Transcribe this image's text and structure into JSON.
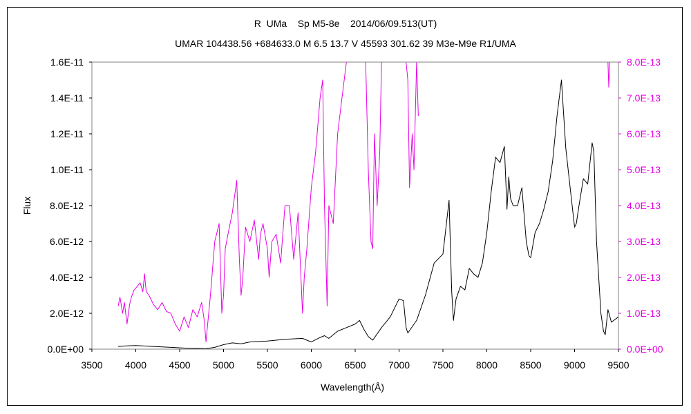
{
  "chart_data": {
    "type": "line",
    "title": "R  UMa    Sp M5-8e    2014/06/09.513(UT)",
    "subtitle": "UMAR 104438.56 +684633.0 M 6.5 13.7 V 45593 301.62 39 M3e-M9e R1/UMA",
    "xlabel": "Wavelength(Å)",
    "ylabel": "Flux",
    "xlim": [
      3500,
      9500
    ],
    "ylim": [
      0,
      1.6e-11
    ],
    "y2lim": [
      0,
      8e-13
    ],
    "grid": false,
    "legend": "none",
    "x_ticks": [
      "3500",
      "4000",
      "4500",
      "5000",
      "5500",
      "6000",
      "6500",
      "7000",
      "7500",
      "8000",
      "8500",
      "9000",
      "9500"
    ],
    "y_ticks": [
      "0.0E+00",
      "2.0E-12",
      "4.0E-12",
      "6.0E-12",
      "8.0E-12",
      "1.0E-11",
      "1.2E-11",
      "1.4E-11",
      "1.6E-11"
    ],
    "y2_ticks": [
      "0.0E+00",
      "1.0E-13",
      "2.0E-13",
      "3.0E-13",
      "4.0E-13",
      "5.0E-13",
      "6.0E-13",
      "7.0E-13",
      "8.0E-13"
    ],
    "series": [
      {
        "axis": "left",
        "color": "#000000",
        "x": [
          3800,
          3900,
          4000,
          4200,
          4400,
          4600,
          4800,
          4900,
          5000,
          5100,
          5200,
          5300,
          5500,
          5700,
          5900,
          6000,
          6100,
          6150,
          6200,
          6300,
          6400,
          6500,
          6550,
          6600,
          6650,
          6700,
          6800,
          6900,
          7000,
          7050,
          7080,
          7100,
          7200,
          7300,
          7400,
          7500,
          7570,
          7600,
          7620,
          7650,
          7700,
          7750,
          7800,
          7850,
          7900,
          7950,
          8000,
          8050,
          8100,
          8150,
          8200,
          8230,
          8250,
          8270,
          8300,
          8350,
          8400,
          8450,
          8480,
          8500,
          8550,
          8600,
          8650,
          8700,
          8750,
          8800,
          8850,
          8870,
          8900,
          8950,
          9000,
          9020,
          9050,
          9100,
          9150,
          9200,
          9220,
          9250,
          9300,
          9330,
          9350,
          9380,
          9420,
          9500
        ],
        "y": [
          1.5e-13,
          1.8e-13,
          2e-13,
          1.5e-13,
          1e-13,
          5e-14,
          3e-14,
          1e-13,
          2.5e-13,
          3.5e-13,
          3e-13,
          4e-13,
          4.5e-13,
          5.5e-13,
          6e-13,
          4e-13,
          6.5e-13,
          7.5e-13,
          6e-13,
          1e-12,
          1.2e-12,
          1.4e-12,
          1.6e-12,
          1.1e-12,
          7e-13,
          5e-13,
          1.2e-12,
          1.8e-12,
          2.8e-12,
          2.7e-12,
          1.2e-12,
          9e-13,
          1.6e-12,
          3e-12,
          4.8e-12,
          5.3e-12,
          8.3e-12,
          3.2e-12,
          1.6e-12,
          2.8e-12,
          3.5e-12,
          3.3e-12,
          4.5e-12,
          4.2e-12,
          4e-12,
          4.8e-12,
          6.5e-12,
          8.8e-12,
          1.07e-11,
          1.04e-11,
          1.13e-11,
          7.8e-12,
          9.6e-12,
          8.4e-12,
          8e-12,
          8e-12,
          9e-12,
          6e-12,
          5.2e-12,
          5.1e-12,
          6.5e-12,
          7e-12,
          7.8e-12,
          8.8e-12,
          1.05e-11,
          1.3e-11,
          1.5e-11,
          1.35e-11,
          1.12e-11,
          9e-12,
          6.8e-12,
          7e-12,
          8e-12,
          9.5e-12,
          9.2e-12,
          1.15e-11,
          1.1e-11,
          6e-12,
          2e-12,
          1e-12,
          8e-13,
          2.2e-12,
          1.5e-12,
          1.8e-12
        ]
      },
      {
        "axis": "right",
        "color": "#e600e6",
        "x": [
          3800,
          3820,
          3850,
          3870,
          3900,
          3930,
          3950,
          3980,
          4000,
          4050,
          4080,
          4100,
          4110,
          4120,
          4150,
          4200,
          4250,
          4300,
          4350,
          4400,
          4450,
          4500,
          4550,
          4600,
          4650,
          4700,
          4750,
          4780,
          4800,
          4850,
          4900,
          4950,
          4980,
          5000,
          5020,
          5050,
          5100,
          5150,
          5180,
          5200,
          5220,
          5250,
          5300,
          5350,
          5400,
          5420,
          5450,
          5500,
          5520,
          5550,
          5600,
          5650,
          5700,
          5750,
          5800,
          5850,
          5900,
          5920,
          5950,
          6000,
          6050,
          6100,
          6130,
          6150,
          6180,
          6200,
          6250,
          6300,
          6350,
          6400,
          6430,
          6450,
          6480,
          6500,
          6550,
          6600,
          6620,
          6650,
          6680,
          6700,
          6720,
          6750,
          6780,
          6800,
          6850,
          6900,
          6950,
          7000,
          7050,
          7080,
          7100,
          7120,
          7150,
          7170,
          7200,
          7220
        ],
        "y": [
          1.2e-13,
          1.45e-13,
          1e-13,
          1.3e-13,
          7e-14,
          1.25e-13,
          1.45e-13,
          1.65e-13,
          1.7e-13,
          1.85e-13,
          1.6e-13,
          2.1e-13,
          1.8e-13,
          1.6e-13,
          1.5e-13,
          1.25e-13,
          1.1e-13,
          1.3e-13,
          1.05e-13,
          1e-13,
          7e-14,
          5e-14,
          9e-14,
          6e-14,
          1.1e-13,
          9e-14,
          1.3e-13,
          8e-14,
          2e-14,
          1.5e-13,
          3e-13,
          3.5e-13,
          1e-13,
          1.5e-13,
          2.8e-13,
          3.2e-13,
          3.8e-13,
          4.7e-13,
          2.5e-13,
          1.5e-13,
          2e-13,
          3.4e-13,
          3e-13,
          3.6e-13,
          2.5e-13,
          3.2e-13,
          3.5e-13,
          2.8e-13,
          2e-13,
          3e-13,
          3.2e-13,
          2.4e-13,
          4e-13,
          4e-13,
          2.5e-13,
          3.8e-13,
          1e-13,
          2e-13,
          2.8e-13,
          4.5e-13,
          5.5e-13,
          7e-13,
          7.5e-13,
          4e-13,
          1.2e-13,
          4e-13,
          3.5e-13,
          6e-13,
          7e-13,
          8e-13,
          8e-13,
          8e-13,
          8e-13,
          8e-13,
          8e-13,
          8e-13,
          8e-13,
          5e-13,
          3e-13,
          2.8e-13,
          6e-13,
          4e-13,
          5.5e-13,
          8e-13,
          8e-13,
          8e-13,
          8e-13,
          8e-13,
          8e-13,
          8e-13,
          7.5e-13,
          4.5e-13,
          6e-13,
          5e-13,
          8e-13,
          6.5e-13
        ]
      },
      {
        "axis": "right",
        "color": "#e600e6",
        "x": [
          9380,
          9390,
          9400
        ],
        "y": [
          8e-13,
          7.3e-13,
          8e-13
        ]
      }
    ]
  }
}
